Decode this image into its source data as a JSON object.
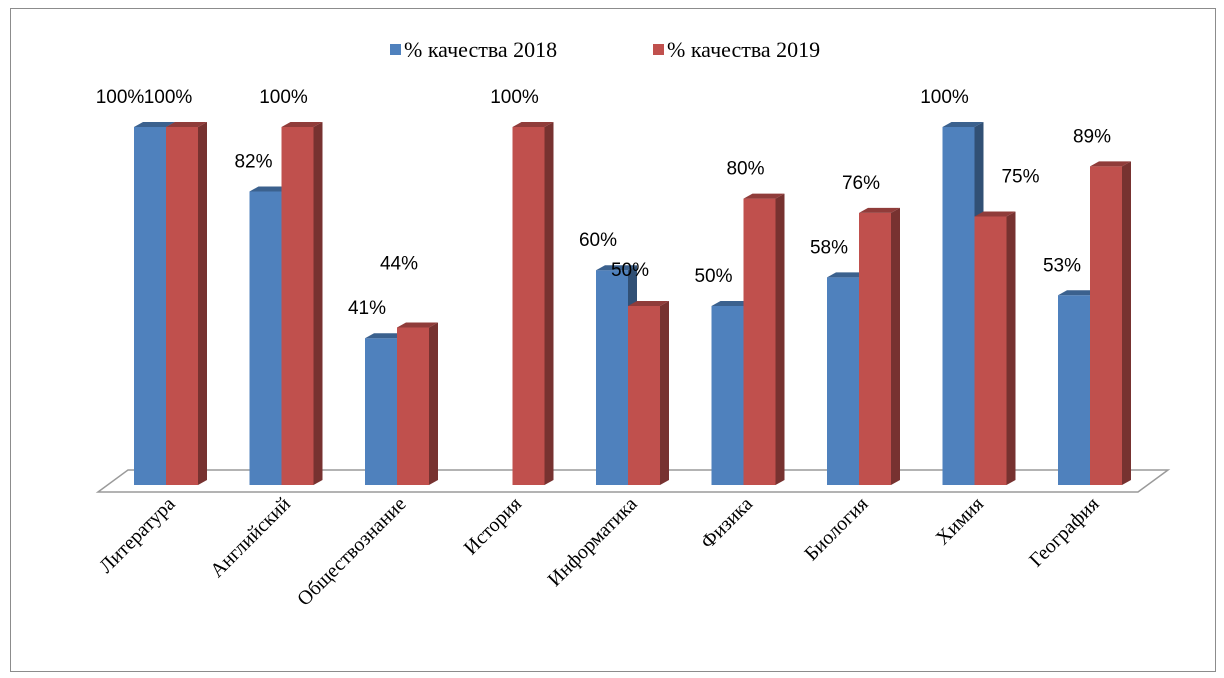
{
  "chart_data": {
    "type": "bar",
    "style": "3d-clustered-column",
    "title": "",
    "xlabel": "",
    "ylabel": "",
    "ylim": [
      0,
      100
    ],
    "grid": false,
    "legend_position": "top",
    "categories": [
      "Литература",
      "Английский",
      "Обществознание",
      "История",
      "Информатика",
      "Физика",
      "Биология",
      "Химия",
      "География"
    ],
    "series": [
      {
        "name": "% качества 2018",
        "color": "#4f81bd",
        "values": [
          100,
          82,
          41,
          null,
          60,
          50,
          58,
          100,
          53
        ],
        "labels": [
          "100%",
          "82%",
          "41%",
          "",
          "60%",
          "50%",
          "58%",
          "100%",
          "53%"
        ]
      },
      {
        "name": "% качества 2019",
        "color": "#c0504d",
        "values": [
          100,
          100,
          44,
          100,
          50,
          80,
          76,
          75,
          89
        ],
        "labels": [
          "100%",
          "100%",
          "44%",
          "100%",
          "50%",
          "80%",
          "76%",
          "75%",
          "89%"
        ]
      }
    ]
  }
}
